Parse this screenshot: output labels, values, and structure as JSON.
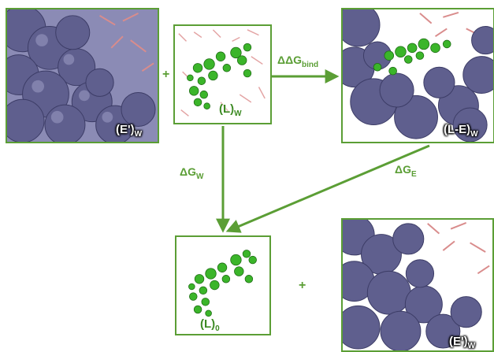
{
  "panels": {
    "enzyme_solvated_top": {
      "label": "(E')",
      "sub": "W"
    },
    "ligand_solvated": {
      "label": "(L)",
      "sub": "W"
    },
    "complex_solvated": {
      "label": "(L-E)",
      "sub": "W"
    },
    "ligand_gas": {
      "label": "(L)",
      "sub": "0"
    },
    "enzyme_solvated_bottom": {
      "label": "(E')",
      "sub": "W"
    }
  },
  "labels": {
    "ddg_bind": {
      "symbol": "ΔΔG",
      "sub": "bind"
    },
    "dg_w": {
      "symbol": "ΔG",
      "sub": "W"
    },
    "dg_e": {
      "symbol": "ΔG",
      "sub": "E"
    }
  },
  "operators": {
    "plus_top": "+",
    "plus_bottom": "+"
  },
  "colors": {
    "frame": "#5b9e35",
    "protein_surface": "#6e6e9c",
    "ligand": "#3bb52a",
    "solvent": "#d98c8c"
  }
}
